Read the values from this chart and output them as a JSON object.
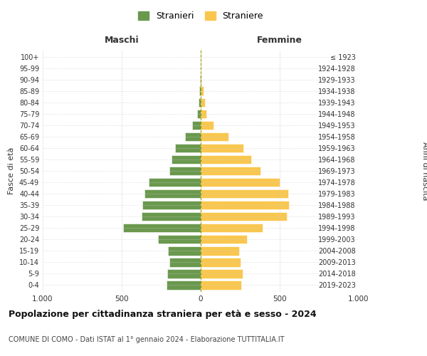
{
  "age_groups": [
    "0-4",
    "5-9",
    "10-14",
    "15-19",
    "20-24",
    "25-29",
    "30-34",
    "35-39",
    "40-44",
    "45-49",
    "50-54",
    "55-59",
    "60-64",
    "65-69",
    "70-74",
    "75-79",
    "80-84",
    "85-89",
    "90-94",
    "95-99",
    "100+"
  ],
  "birth_years": [
    "2019-2023",
    "2014-2018",
    "2009-2013",
    "2004-2008",
    "1999-2003",
    "1994-1998",
    "1989-1993",
    "1984-1988",
    "1979-1983",
    "1974-1978",
    "1969-1973",
    "1964-1968",
    "1959-1963",
    "1954-1958",
    "1949-1953",
    "1944-1948",
    "1939-1943",
    "1934-1938",
    "1929-1933",
    "1924-1928",
    "≤ 1923"
  ],
  "maschi": [
    215,
    210,
    200,
    205,
    270,
    490,
    375,
    370,
    355,
    330,
    200,
    185,
    160,
    100,
    55,
    22,
    15,
    8,
    3,
    1,
    2
  ],
  "femmine": [
    255,
    265,
    250,
    245,
    295,
    390,
    545,
    560,
    555,
    500,
    380,
    320,
    270,
    175,
    80,
    35,
    28,
    18,
    5,
    2,
    2
  ],
  "maschi_color": "#6a994e",
  "femmine_color": "#f9c74f",
  "background_color": "#ffffff",
  "grid_color": "#cccccc",
  "title": "Popolazione per cittadinanza straniera per età e sesso - 2024",
  "subtitle": "COMUNE DI COMO - Dati ISTAT al 1° gennaio 2024 - Elaborazione TUTTITALIA.IT",
  "xlabel_left": "Maschi",
  "xlabel_right": "Femmine",
  "ylabel_left": "Fasce di età",
  "ylabel_right": "Anni di nascita",
  "legend_stranieri": "Stranieri",
  "legend_straniere": "Straniere",
  "xlim": 1000
}
